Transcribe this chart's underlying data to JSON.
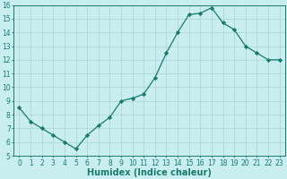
{
  "x": [
    0,
    1,
    2,
    3,
    4,
    5,
    6,
    7,
    8,
    9,
    10,
    11,
    12,
    13,
    14,
    15,
    16,
    17,
    18,
    19,
    20,
    21,
    22,
    23
  ],
  "y": [
    8.5,
    7.5,
    7.0,
    6.5,
    6.0,
    5.5,
    6.5,
    7.2,
    7.8,
    9.0,
    9.2,
    9.5,
    10.7,
    12.5,
    14.0,
    15.3,
    15.4,
    15.8,
    14.7,
    14.2,
    13.0,
    12.5,
    12.0,
    12.0
  ],
  "line_color": "#1a7a6e",
  "marker": "D",
  "marker_size": 2.2,
  "background_color": "#c8eef0",
  "grid_color": "#b0d8d8",
  "xlabel": "Humidex (Indice chaleur)",
  "ylim": [
    5,
    16
  ],
  "xlim": [
    -0.5,
    23.5
  ],
  "yticks": [
    5,
    6,
    7,
    8,
    9,
    10,
    11,
    12,
    13,
    14,
    15,
    16
  ],
  "xticks": [
    0,
    1,
    2,
    3,
    4,
    5,
    6,
    7,
    8,
    9,
    10,
    11,
    12,
    13,
    14,
    15,
    16,
    17,
    18,
    19,
    20,
    21,
    22,
    23
  ],
  "tick_color": "#1a7a6e",
  "label_color": "#1a7a6e",
  "xlabel_fontsize": 7,
  "tick_fontsize": 5.5,
  "linewidth": 0.9
}
